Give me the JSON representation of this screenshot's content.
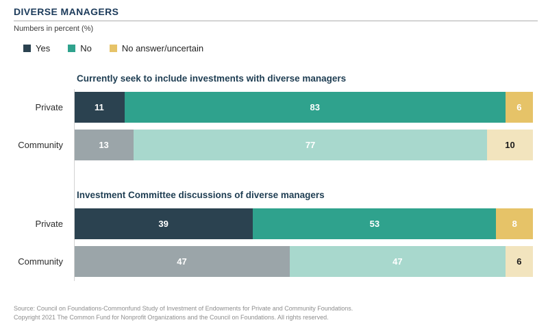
{
  "page": {
    "title": "DIVERSE MANAGERS",
    "subtitle": "Numbers in percent (%)"
  },
  "legend": {
    "position": "top",
    "items": [
      {
        "label": "Yes",
        "color": "#2B4250"
      },
      {
        "label": "No",
        "color": "#2FA28D"
      },
      {
        "label": "No answer/uncertain",
        "color": "#E6C368"
      }
    ]
  },
  "colors": {
    "rows": {
      "Private": [
        "#2B4250",
        "#2FA28D",
        "#E6C368"
      ],
      "Community": [
        "#9BA5A9",
        "#A8D8CD",
        "#F2E4BE"
      ]
    },
    "value_text": {
      "Private": [
        "#FFFFFF",
        "#FFFFFF",
        "#FFFFFF"
      ],
      "Community": [
        "#FFFFFF",
        "#FFFFFF",
        "#1A1A1A"
      ]
    },
    "title_navy": "#1B3A5A",
    "axis_line": "#D2D2D2"
  },
  "chart_data": [
    {
      "type": "bar",
      "stacked": true,
      "orientation": "horizontal",
      "unit": "percent",
      "xlim": [
        0,
        100
      ],
      "grid": false,
      "title": "Currently seek to include investments with diverse managers",
      "categories": [
        "Private",
        "Community"
      ],
      "series": [
        {
          "name": "Yes",
          "values": [
            11,
            13
          ]
        },
        {
          "name": "No",
          "values": [
            83,
            77
          ]
        },
        {
          "name": "No answer/uncertain",
          "values": [
            6,
            10
          ]
        }
      ]
    },
    {
      "type": "bar",
      "stacked": true,
      "orientation": "horizontal",
      "unit": "percent",
      "xlim": [
        0,
        100
      ],
      "grid": false,
      "title": "Investment Committee discussions of diverse managers",
      "categories": [
        "Private",
        "Community"
      ],
      "series": [
        {
          "name": "Yes",
          "values": [
            39,
            47
          ]
        },
        {
          "name": "No",
          "values": [
            53,
            47
          ]
        },
        {
          "name": "No answer/uncertain",
          "values": [
            8,
            6
          ]
        }
      ]
    }
  ],
  "footer": {
    "source_line1": "Source:  Council on Foundations-Commonfund Study of  Investment of Endowments for Private and Community Foundations.",
    "source_line2": "Copyright 2021 The Common Fund for Nonprofit Organizations and the Council on Foundations.  All rights reserved."
  }
}
